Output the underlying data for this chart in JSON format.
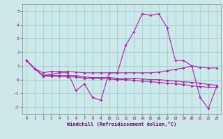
{
  "xlabel": "Windchill (Refroidissement éolien,°C)",
  "bg_color": "#cce8e8",
  "grid_color": "#99cccc",
  "line_color": "#aa22aa",
  "ylim": [
    -2.5,
    5.5
  ],
  "xlim": [
    -0.5,
    23.5
  ],
  "yticks": [
    -2,
    -1,
    0,
    1,
    2,
    3,
    4,
    5
  ],
  "xticks": [
    0,
    1,
    2,
    3,
    4,
    5,
    6,
    7,
    8,
    9,
    10,
    11,
    12,
    13,
    14,
    15,
    16,
    17,
    18,
    19,
    20,
    21,
    22,
    23
  ],
  "y_main": [
    1.4,
    0.8,
    0.3,
    0.4,
    0.5,
    0.5,
    -0.8,
    -0.3,
    -1.3,
    -1.5,
    0.5,
    0.5,
    2.5,
    3.5,
    4.8,
    4.7,
    4.8,
    3.8,
    1.4,
    1.4,
    1.0,
    -1.3,
    -2.1,
    -0.5
  ],
  "y_flat1": [
    1.4,
    0.8,
    0.5,
    0.6,
    0.6,
    0.6,
    0.55,
    0.5,
    0.5,
    0.5,
    0.5,
    0.5,
    0.5,
    0.5,
    0.5,
    0.5,
    0.55,
    0.65,
    0.75,
    0.85,
    1.0,
    0.9,
    0.85,
    0.85
  ],
  "y_flat2": [
    1.4,
    0.8,
    0.3,
    0.3,
    0.3,
    0.3,
    0.3,
    0.2,
    0.15,
    0.15,
    0.15,
    0.1,
    0.1,
    0.1,
    0.05,
    0.0,
    0.0,
    -0.05,
    -0.1,
    -0.15,
    -0.2,
    -0.25,
    -0.35,
    -0.4
  ],
  "y_flat3": [
    1.4,
    0.8,
    0.25,
    0.25,
    0.25,
    0.2,
    0.2,
    0.1,
    0.1,
    0.1,
    0.05,
    0.0,
    0.0,
    -0.05,
    -0.1,
    -0.15,
    -0.2,
    -0.25,
    -0.3,
    -0.35,
    -0.45,
    -0.5,
    -0.55,
    -0.55
  ]
}
